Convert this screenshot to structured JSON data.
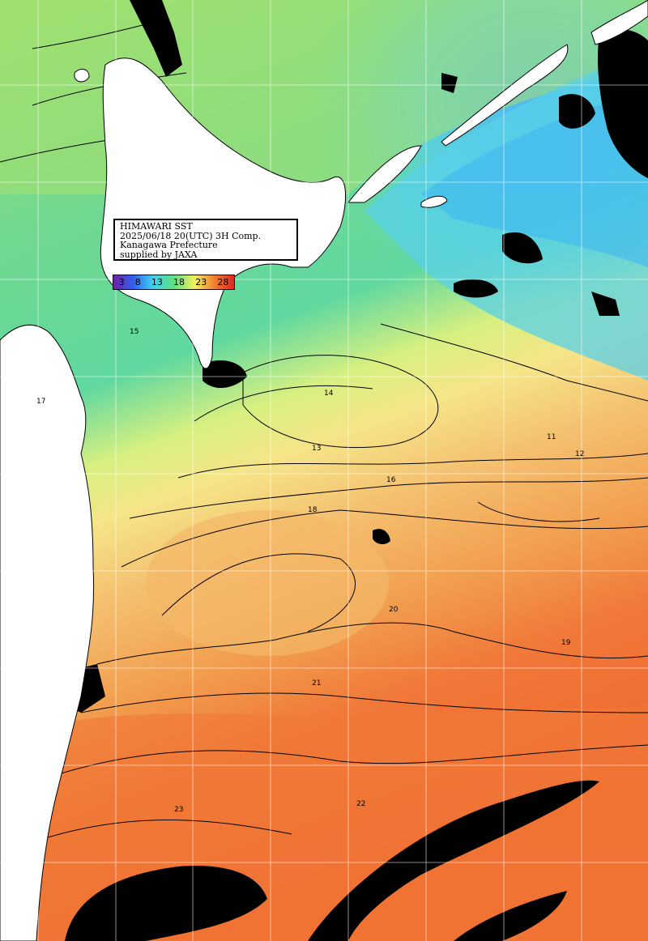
{
  "header": {
    "line1": "HIMAWARI SST",
    "line2": "2025/06/18 20(UTC) 3H Comp.",
    "line3": "Kanagawa Prefecture",
    "line4": "supplied by JAXA"
  },
  "colorbar": {
    "ticks": [
      "3",
      "8",
      "13",
      "18",
      "23",
      "28"
    ]
  },
  "contour_labels": [
    "13",
    "15",
    "17",
    "18",
    "19",
    "20",
    "21",
    "22",
    "23",
    "12",
    "11",
    "16",
    "14"
  ],
  "colors": {
    "land": "#ffffff",
    "cloud": "#000000",
    "cold": "#40c8f0",
    "cool": "#70e0a0",
    "mild": "#a8e870",
    "warm": "#f0e080",
    "hot": "#f0a050",
    "hotter": "#f07030"
  }
}
